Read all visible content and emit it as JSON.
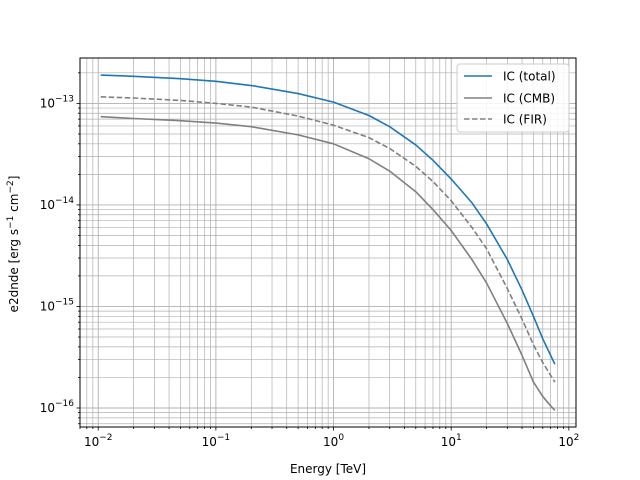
{
  "chart_data": {
    "type": "line",
    "xlabel": "Energy [TeV]",
    "ylabel_main": "e2dnde [erg s",
    "ylabel_exp1": "−1",
    "ylabel_mid": " cm",
    "ylabel_exp2": "−2",
    "ylabel_end": "]",
    "xscale": "log",
    "yscale": "log",
    "xlim": [
      0.007,
      115
    ],
    "ylim": [
      6.5e-17,
      2.8e-13
    ],
    "x_ticks": [
      {
        "value": 0.01,
        "base": "10",
        "exp": "−2"
      },
      {
        "value": 0.1,
        "base": "10",
        "exp": "−1"
      },
      {
        "value": 1,
        "base": "10",
        "exp": "0"
      },
      {
        "value": 10,
        "base": "10",
        "exp": "1"
      },
      {
        "value": 100,
        "base": "10",
        "exp": "2"
      }
    ],
    "y_ticks": [
      {
        "value": 1e-16,
        "base": "10",
        "exp": "−16"
      },
      {
        "value": 1e-15,
        "base": "10",
        "exp": "−15"
      },
      {
        "value": 1e-14,
        "base": "10",
        "exp": "−14"
      },
      {
        "value": 1e-13,
        "base": "10",
        "exp": "−13"
      }
    ],
    "grid": true,
    "legend_position": "top-right",
    "x": [
      0.0105,
      0.02,
      0.05,
      0.1,
      0.2,
      0.5,
      1,
      2,
      3,
      5,
      7,
      10,
      15,
      20,
      30,
      40,
      50,
      60,
      70,
      76
    ],
    "series": [
      {
        "name": "IC (total)",
        "color": "#1f77b4",
        "dash": "solid",
        "values": [
          1.9e-13,
          1.85e-13,
          1.75e-13,
          1.65e-13,
          1.5e-13,
          1.25e-13,
          1.03e-13,
          7.6e-14,
          5.9e-14,
          3.9e-14,
          2.75e-14,
          1.8e-14,
          1.05e-14,
          6.5e-15,
          2.9e-15,
          1.45e-15,
          8e-16,
          4.8e-16,
          3.3e-16,
          2.7e-16
        ]
      },
      {
        "name": "IC (CMB)",
        "color": "#808080",
        "dash": "solid",
        "values": [
          7.4e-14,
          7.1e-14,
          6.75e-14,
          6.4e-14,
          5.9e-14,
          4.9e-14,
          4e-14,
          2.85e-14,
          2.15e-14,
          1.35e-14,
          9e-15,
          5.6e-15,
          2.9e-15,
          1.7e-15,
          6.8e-16,
          3.3e-16,
          1.8e-16,
          1.3e-16,
          1.05e-16,
          9.5e-17
        ]
      },
      {
        "name": "IC (FIR)",
        "color": "#808080",
        "dash": "dashed",
        "values": [
          1.16e-13,
          1.13e-13,
          1.07e-13,
          1e-13,
          9.2e-14,
          7.5e-14,
          6.1e-14,
          4.6e-14,
          3.6e-14,
          2.4e-14,
          1.7e-14,
          1.1e-14,
          6e-15,
          3.7e-15,
          1.5e-15,
          7.5e-16,
          4.2e-16,
          2.8e-16,
          2.1e-16,
          1.8e-16
        ]
      }
    ]
  }
}
